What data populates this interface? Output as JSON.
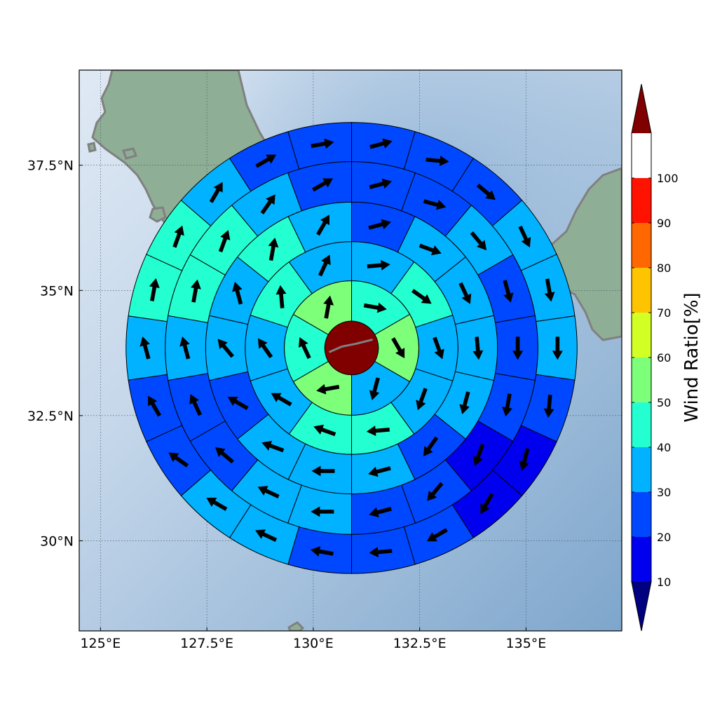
{
  "map": {
    "lon_range": [
      124.5,
      137.25
    ],
    "lat_range": [
      28.2,
      39.4
    ],
    "center": [
      130.9,
      33.85
    ],
    "ring_radii_deg": [
      0.63,
      1.58,
      2.5,
      3.43,
      4.38,
      5.3
    ],
    "colors": {
      "land": "#8fae96",
      "land_edge": "#7a9a80",
      "coastline": "#808080",
      "sea_dark": "#7ea6cc",
      "sea_light": "#dfe9f4",
      "grid": "#3a4a5a",
      "cell_edge": "#000000",
      "center_disc": "#800000"
    },
    "xticks": [
      {
        "value": 125,
        "label": "125°E"
      },
      {
        "value": 127.5,
        "label": "127.5°E"
      },
      {
        "value": 130,
        "label": "130°E"
      },
      {
        "value": 132.5,
        "label": "132.5°E"
      },
      {
        "value": 135,
        "label": "135°E"
      }
    ],
    "yticks": [
      {
        "value": 37.5,
        "label": "37.5°N"
      },
      {
        "value": 35,
        "label": "35°N"
      },
      {
        "value": 32.5,
        "label": "32.5°N"
      },
      {
        "value": 30,
        "label": "30°N"
      }
    ]
  },
  "chart_data": {
    "type": "heatmap",
    "title": "",
    "colorbar": {
      "label": "Wind Ratio[%]",
      "ticks": [
        "10",
        "20",
        "30",
        "40",
        "50",
        "60",
        "70",
        "80",
        "90",
        "100"
      ],
      "bins": [
        {
          "range": "<10",
          "color": "#000080"
        },
        {
          "range": "10-20",
          "color": "#0000ee"
        },
        {
          "range": "20-30",
          "color": "#0048ff"
        },
        {
          "range": "30-40",
          "color": "#00b2ff"
        },
        {
          "range": "40-50",
          "color": "#24ffd2"
        },
        {
          "range": "50-60",
          "color": "#7dff7a"
        },
        {
          "range": "60-70",
          "color": "#d2ff24"
        },
        {
          "range": "70-80",
          "color": "#ffc400"
        },
        {
          "range": "80-90",
          "color": "#ff6800"
        },
        {
          "range": "90-100",
          "color": "#ff1200"
        },
        {
          "range": ">100",
          "color": "#800000"
        }
      ]
    },
    "rings": [
      {
        "ring": 1,
        "sectors": 6,
        "cells": [
          {
            "sector": 1,
            "ratio": 40,
            "wind_dir_deg": 100
          },
          {
            "sector": 2,
            "ratio": 50,
            "wind_dir_deg": 150
          },
          {
            "sector": 3,
            "ratio": 30,
            "wind_dir_deg": 195
          },
          {
            "sector": 4,
            "ratio": 50,
            "wind_dir_deg": 260
          },
          {
            "sector": 5,
            "ratio": 40,
            "wind_dir_deg": 335
          },
          {
            "sector": 6,
            "ratio": 50,
            "wind_dir_deg": 10
          }
        ]
      },
      {
        "ring": 2,
        "sectors": 10,
        "cells": [
          {
            "sector": 1,
            "ratio": 30,
            "wind_dir_deg": 85
          },
          {
            "sector": 2,
            "ratio": 40,
            "wind_dir_deg": 125
          },
          {
            "sector": 3,
            "ratio": 30,
            "wind_dir_deg": 160
          },
          {
            "sector": 4,
            "ratio": 30,
            "wind_dir_deg": 200
          },
          {
            "sector": 5,
            "ratio": 40,
            "wind_dir_deg": 265
          },
          {
            "sector": 6,
            "ratio": 40,
            "wind_dir_deg": 290
          },
          {
            "sector": 7,
            "ratio": 30,
            "wind_dir_deg": 300
          },
          {
            "sector": 8,
            "ratio": 30,
            "wind_dir_deg": 325
          },
          {
            "sector": 9,
            "ratio": 40,
            "wind_dir_deg": 355
          },
          {
            "sector": 10,
            "ratio": 30,
            "wind_dir_deg": 25
          }
        ]
      },
      {
        "ring": 3,
        "sectors": 14,
        "cells": [
          {
            "sector": 1,
            "ratio": 20,
            "wind_dir_deg": 75
          },
          {
            "sector": 2,
            "ratio": 30,
            "wind_dir_deg": 110
          },
          {
            "sector": 3,
            "ratio": 30,
            "wind_dir_deg": 155
          },
          {
            "sector": 4,
            "ratio": 30,
            "wind_dir_deg": 175
          },
          {
            "sector": 5,
            "ratio": 30,
            "wind_dir_deg": 195
          },
          {
            "sector": 6,
            "ratio": 20,
            "wind_dir_deg": 215
          },
          {
            "sector": 7,
            "ratio": 30,
            "wind_dir_deg": 255
          },
          {
            "sector": 8,
            "ratio": 30,
            "wind_dir_deg": 270
          },
          {
            "sector": 9,
            "ratio": 30,
            "wind_dir_deg": 290
          },
          {
            "sector": 10,
            "ratio": 20,
            "wind_dir_deg": 300
          },
          {
            "sector": 11,
            "ratio": 30,
            "wind_dir_deg": 320
          },
          {
            "sector": 12,
            "ratio": 30,
            "wind_dir_deg": 345
          },
          {
            "sector": 13,
            "ratio": 40,
            "wind_dir_deg": 10
          },
          {
            "sector": 14,
            "ratio": 30,
            "wind_dir_deg": 30
          }
        ]
      },
      {
        "ring": 4,
        "sectors": 18,
        "cells": [
          {
            "sector": 1,
            "ratio": 20,
            "wind_dir_deg": 75
          },
          {
            "sector": 2,
            "ratio": 20,
            "wind_dir_deg": 105
          },
          {
            "sector": 3,
            "ratio": 30,
            "wind_dir_deg": 140
          },
          {
            "sector": 4,
            "ratio": 20,
            "wind_dir_deg": 165
          },
          {
            "sector": 5,
            "ratio": 20,
            "wind_dir_deg": 180
          },
          {
            "sector": 6,
            "ratio": 20,
            "wind_dir_deg": 190
          },
          {
            "sector": 7,
            "ratio": 10,
            "wind_dir_deg": 200
          },
          {
            "sector": 8,
            "ratio": 20,
            "wind_dir_deg": 220
          },
          {
            "sector": 9,
            "ratio": 20,
            "wind_dir_deg": 255
          },
          {
            "sector": 10,
            "ratio": 30,
            "wind_dir_deg": 270
          },
          {
            "sector": 11,
            "ratio": 30,
            "wind_dir_deg": 295
          },
          {
            "sector": 12,
            "ratio": 20,
            "wind_dir_deg": 310
          },
          {
            "sector": 13,
            "ratio": 20,
            "wind_dir_deg": 335
          },
          {
            "sector": 14,
            "ratio": 30,
            "wind_dir_deg": 345
          },
          {
            "sector": 15,
            "ratio": 40,
            "wind_dir_deg": 10
          },
          {
            "sector": 16,
            "ratio": 40,
            "wind_dir_deg": 20
          },
          {
            "sector": 17,
            "ratio": 30,
            "wind_dir_deg": 35
          },
          {
            "sector": 18,
            "ratio": 20,
            "wind_dir_deg": 60
          }
        ]
      },
      {
        "ring": 5,
        "sectors": 22,
        "cells": [
          {
            "sector": 1,
            "ratio": 20,
            "wind_dir_deg": 75
          },
          {
            "sector": 2,
            "ratio": 20,
            "wind_dir_deg": 95
          },
          {
            "sector": 3,
            "ratio": 20,
            "wind_dir_deg": 130
          },
          {
            "sector": 4,
            "ratio": 30,
            "wind_dir_deg": 155
          },
          {
            "sector": 5,
            "ratio": 30,
            "wind_dir_deg": 170
          },
          {
            "sector": 6,
            "ratio": 30,
            "wind_dir_deg": 180
          },
          {
            "sector": 7,
            "ratio": 20,
            "wind_dir_deg": 185
          },
          {
            "sector": 8,
            "ratio": 10,
            "wind_dir_deg": 195
          },
          {
            "sector": 9,
            "ratio": 10,
            "wind_dir_deg": 210
          },
          {
            "sector": 10,
            "ratio": 20,
            "wind_dir_deg": 240
          },
          {
            "sector": 11,
            "ratio": 20,
            "wind_dir_deg": 265
          },
          {
            "sector": 12,
            "ratio": 20,
            "wind_dir_deg": 280
          },
          {
            "sector": 13,
            "ratio": 30,
            "wind_dir_deg": 295
          },
          {
            "sector": 14,
            "ratio": 30,
            "wind_dir_deg": 300
          },
          {
            "sector": 15,
            "ratio": 20,
            "wind_dir_deg": 305
          },
          {
            "sector": 16,
            "ratio": 20,
            "wind_dir_deg": 330
          },
          {
            "sector": 17,
            "ratio": 30,
            "wind_dir_deg": 345
          },
          {
            "sector": 18,
            "ratio": 40,
            "wind_dir_deg": 10
          },
          {
            "sector": 19,
            "ratio": 40,
            "wind_dir_deg": 20
          },
          {
            "sector": 20,
            "ratio": 30,
            "wind_dir_deg": 30
          },
          {
            "sector": 21,
            "ratio": 20,
            "wind_dir_deg": 60
          },
          {
            "sector": 22,
            "ratio": 20,
            "wind_dir_deg": 80
          }
        ]
      },
      {
        "ring": 6,
        "sectors": 26,
        "cells": [
          {
            "sector": 1,
            "ratio": 20,
            "wind_dir_deg": 80
          },
          {
            "sector": 2,
            "ratio": 20,
            "wind_dir_deg": 100
          },
          {
            "sector": 3,
            "ratio": 20,
            "wind_dir_deg": 130
          },
          {
            "sector": 4,
            "ratio": 30,
            "wind_dir_deg": 145
          },
          {
            "sector": 5,
            "ratio": 30,
            "wind_dir_deg": 160
          },
          {
            "sector": 6,
            "ratio": 20,
            "wind_dir_deg": 170
          },
          {
            "sector": 7,
            "ratio": 20,
            "wind_dir_deg": 175
          },
          {
            "sector": 8,
            "ratio": 10,
            "wind_dir_deg": 185
          },
          {
            "sector": 9,
            "ratio": 10,
            "wind_dir_deg": 200
          },
          {
            "sector": 10,
            "ratio": 10,
            "wind_dir_deg": 210
          },
          {
            "sector": 11,
            "ratio": 20,
            "wind_dir_deg": 215
          },
          {
            "sector": 12,
            "ratio": 10,
            "wind_dir_deg": 225
          },
          {
            "sector": 13,
            "ratio": 20,
            "wind_dir_deg": 245
          },
          {
            "sector": 14,
            "ratio": 20,
            "wind_dir_deg": 265
          },
          {
            "sector": 15,
            "ratio": 20,
            "wind_dir_deg": 280
          },
          {
            "sector": 16,
            "ratio": 20,
            "wind_dir_deg": 290
          },
          {
            "sector": 17,
            "ratio": 20,
            "wind_dir_deg": 300
          },
          {
            "sector": 18,
            "ratio": 20,
            "wind_dir_deg": 300
          },
          {
            "sector": 19,
            "ratio": 20,
            "wind_dir_deg": 310
          },
          {
            "sector": 20,
            "ratio": 20,
            "wind_dir_deg": 325
          },
          {
            "sector": 21,
            "ratio": 30,
            "wind_dir_deg": 340
          },
          {
            "sector": 22,
            "ratio": 40,
            "wind_dir_deg": 15
          },
          {
            "sector": 23,
            "ratio": 40,
            "wind_dir_deg": 30
          },
          {
            "sector": 24,
            "ratio": 30,
            "wind_dir_deg": 60
          },
          {
            "sector": 25,
            "ratio": 20,
            "wind_dir_deg": 75
          },
          {
            "sector": 26,
            "ratio": 20,
            "wind_dir_deg": 85
          }
        ]
      }
    ]
  }
}
